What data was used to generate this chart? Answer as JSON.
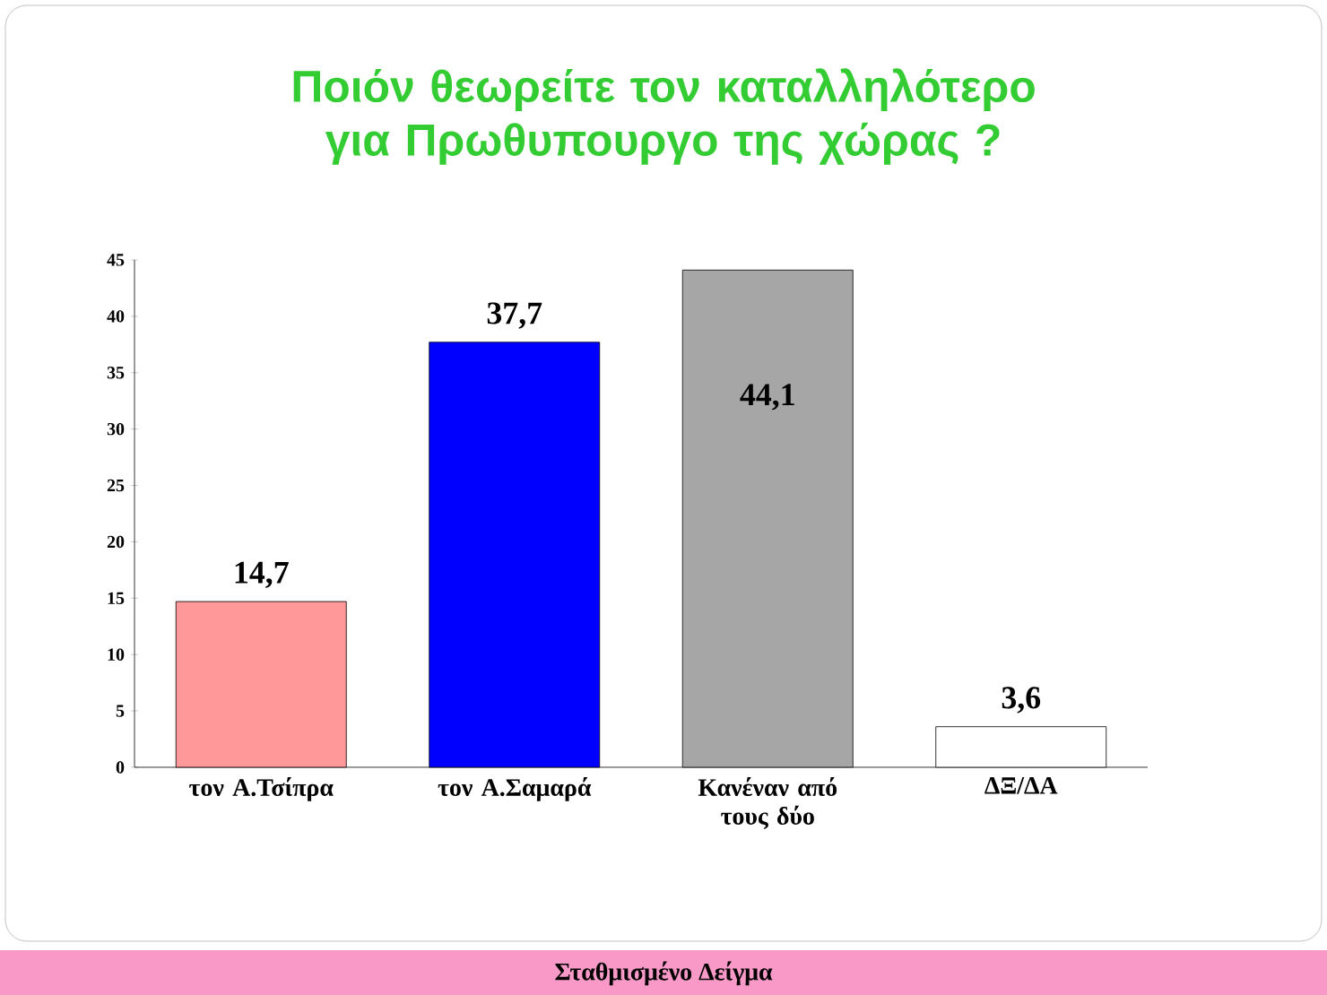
{
  "chart_data": {
    "type": "bar",
    "title": "Ποιόν θεωρείτε τον καταλληλότερο  για Πρωθυπουργο της χώρας  ?",
    "categories": [
      "τον Α.Τσίπρα",
      "τον Α.Σαμαρά",
      "Κανέναν από τους δύο",
      "ΔΞ/ΔΑ"
    ],
    "values": [
      14.7,
      37.7,
      44.1,
      3.6
    ],
    "colors": [
      "#ff9999",
      "#0000ff",
      "#a6a6a6",
      "#ffffff"
    ],
    "value_labels": [
      "14,7",
      "37,7",
      "44,1",
      "3,6"
    ],
    "ylim": [
      0,
      45
    ],
    "yticks": [
      0,
      5,
      10,
      15,
      20,
      25,
      30,
      35,
      40,
      45
    ],
    "annotations": [
      "Σταθμισμένο Δείγμα"
    ]
  }
}
